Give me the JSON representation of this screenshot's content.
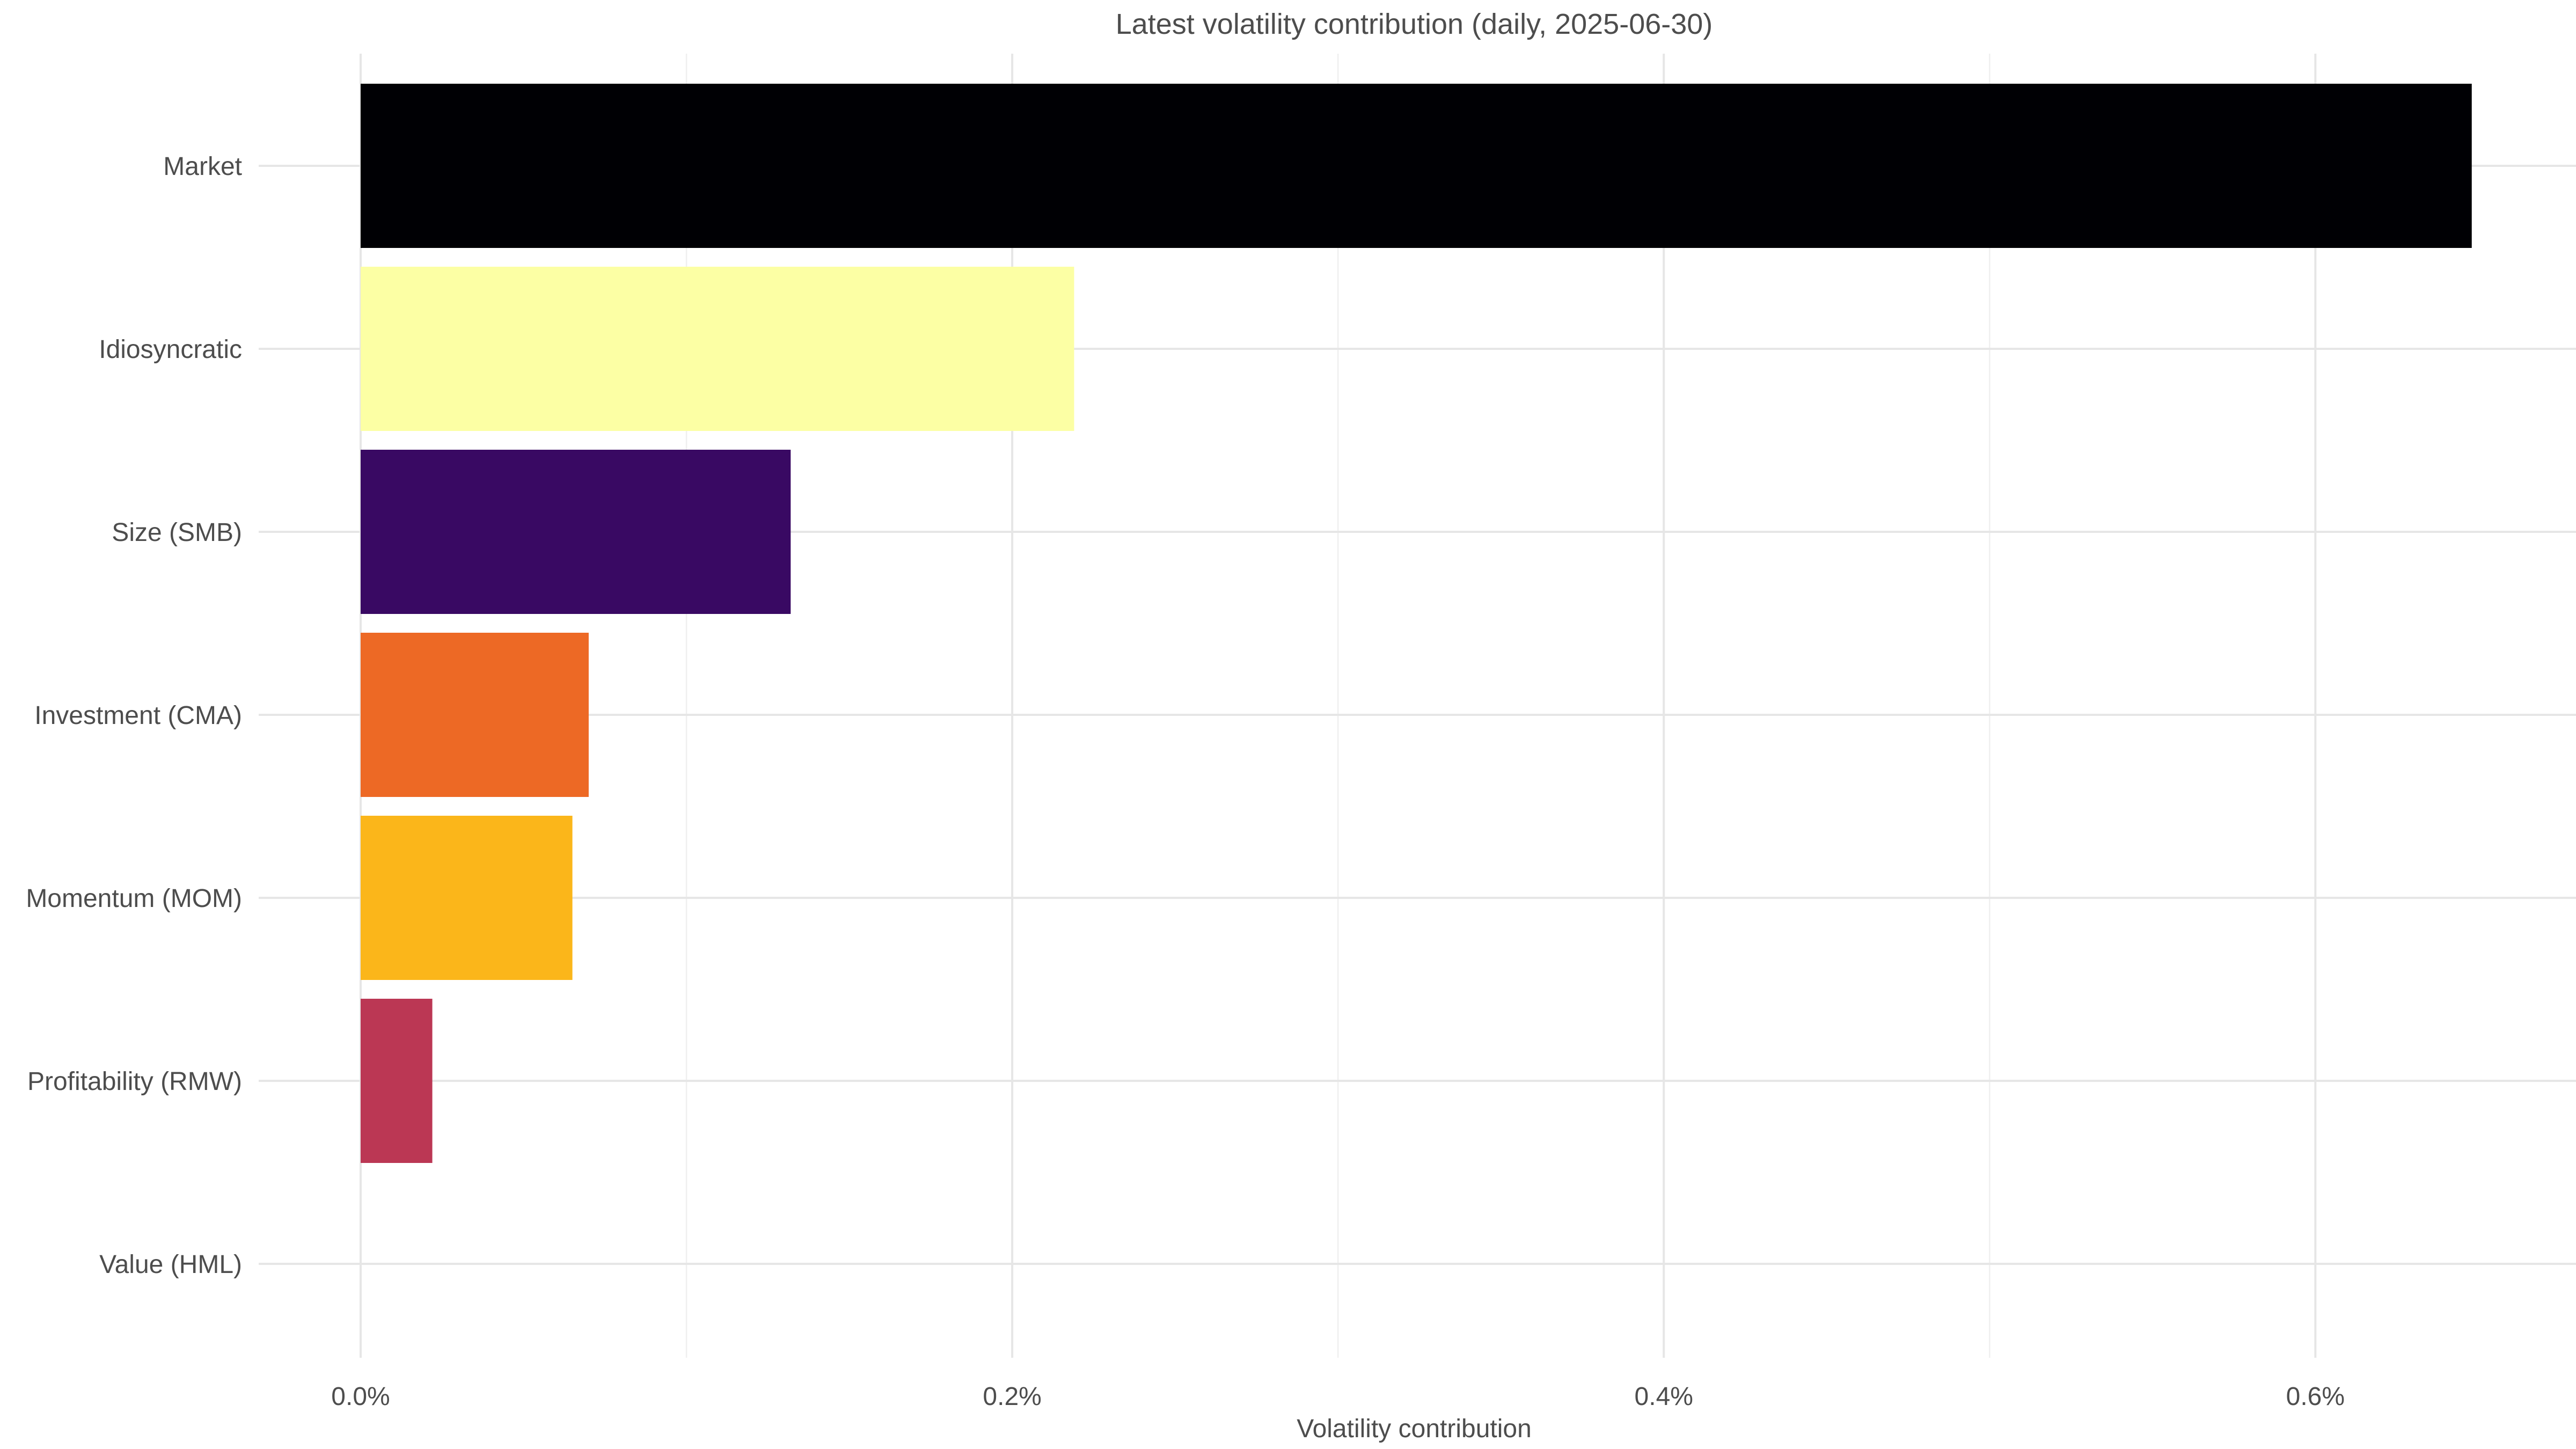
{
  "chart_data": {
    "type": "bar",
    "orientation": "horizontal",
    "title": "Latest volatility contribution (daily, 2025-06-30)",
    "xlabel": "Volatility contribution",
    "ylabel": "",
    "categories": [
      "Market",
      "Idiosyncratic",
      "Size (SMB)",
      "Investment (CMA)",
      "Momentum (MOM)",
      "Profitability (RMW)",
      "Value (HML)"
    ],
    "values": [
      0.00648,
      0.00219,
      0.00132,
      0.0007,
      0.00065,
      0.00022,
      0.0
    ],
    "colors": [
      "#000004",
      "#fcffa4",
      "#390963",
      "#ed6925",
      "#fbb61a",
      "#bb3754",
      "#000004"
    ],
    "xlim": [
      -0.000313,
      0.0068
    ],
    "x_ticks": [
      0.0,
      0.002,
      0.004,
      0.006
    ],
    "x_tick_labels": [
      "0.0%",
      "0.2%",
      "0.4%",
      "0.6%"
    ],
    "x_minor_ticks": [
      0.001,
      0.003,
      0.005
    ],
    "grid": true,
    "legend": "none"
  }
}
